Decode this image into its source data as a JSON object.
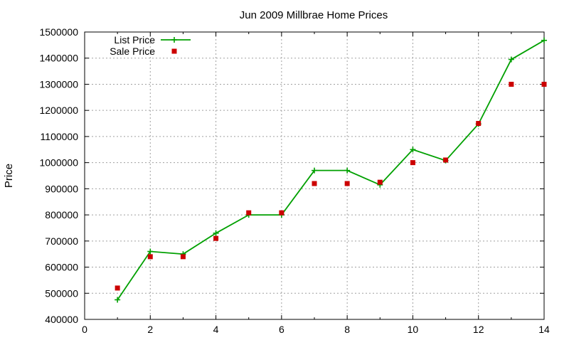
{
  "chart_data": {
    "type": "line",
    "title": "Jun 2009 Millbrae Home Prices",
    "xlabel": "",
    "ylabel": "Price",
    "xlim": [
      0,
      14
    ],
    "ylim": [
      400000,
      1500000
    ],
    "xticks": [
      0,
      2,
      4,
      6,
      8,
      10,
      12,
      14
    ],
    "yticks": [
      400000,
      500000,
      600000,
      700000,
      800000,
      900000,
      1000000,
      1100000,
      1200000,
      1300000,
      1400000,
      1500000
    ],
    "grid": true,
    "legend_position": "top-left",
    "x": [
      1,
      2,
      3,
      4,
      5,
      6,
      7,
      8,
      9,
      10,
      11,
      12,
      13,
      14
    ],
    "series": [
      {
        "name": "List Price",
        "style": "lines+points",
        "marker": "plus",
        "color": "#00a000",
        "values": [
          475000,
          660000,
          650000,
          730000,
          800000,
          800000,
          970000,
          970000,
          915000,
          1050000,
          1008000,
          1148000,
          1395000,
          1468000
        ]
      },
      {
        "name": "Sale Price",
        "style": "points",
        "marker": "square",
        "color": "#cc0000",
        "values": [
          520000,
          640000,
          640000,
          710000,
          808000,
          808000,
          920000,
          920000,
          925000,
          1000000,
          1010000,
          1150000,
          1300000,
          1300000
        ]
      }
    ]
  }
}
